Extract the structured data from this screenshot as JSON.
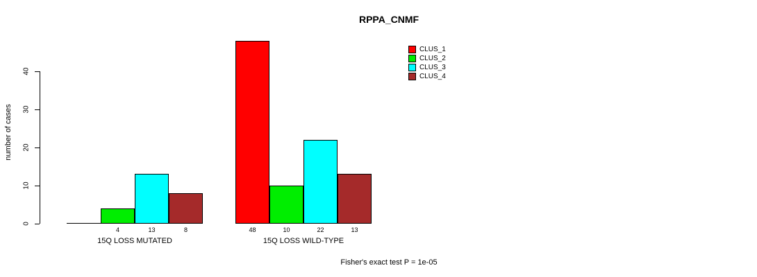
{
  "chart_data": {
    "type": "bar",
    "title": "RPPA_CNMF",
    "ylabel": "number of cases",
    "xlabel": "",
    "ylim": [
      0,
      48
    ],
    "yticks": [
      0,
      10,
      20,
      30,
      40
    ],
    "categories": [
      "15Q LOSS MUTATED",
      "15Q LOSS WILD-TYPE"
    ],
    "series": [
      {
        "name": "CLUS_1",
        "color": "#ff0000",
        "values": [
          0,
          48
        ]
      },
      {
        "name": "CLUS_2",
        "color": "#00ee00",
        "values": [
          4,
          10
        ]
      },
      {
        "name": "CLUS_3",
        "color": "#00ffff",
        "values": [
          13,
          22
        ]
      },
      {
        "name": "CLUS_4",
        "color": "#a52a2a",
        "values": [
          8,
          13
        ]
      }
    ],
    "bar_value_labels": [
      [
        "",
        "4",
        "13",
        "8"
      ],
      [
        "48",
        "10",
        "22",
        "13"
      ]
    ],
    "annotation": "Fisher's exact test P = 1e-05",
    "legend_position": "top-right",
    "grid": false,
    "bar_border_color": "#000000",
    "axis_color": "#000000",
    "background_color": "#ffffff"
  }
}
